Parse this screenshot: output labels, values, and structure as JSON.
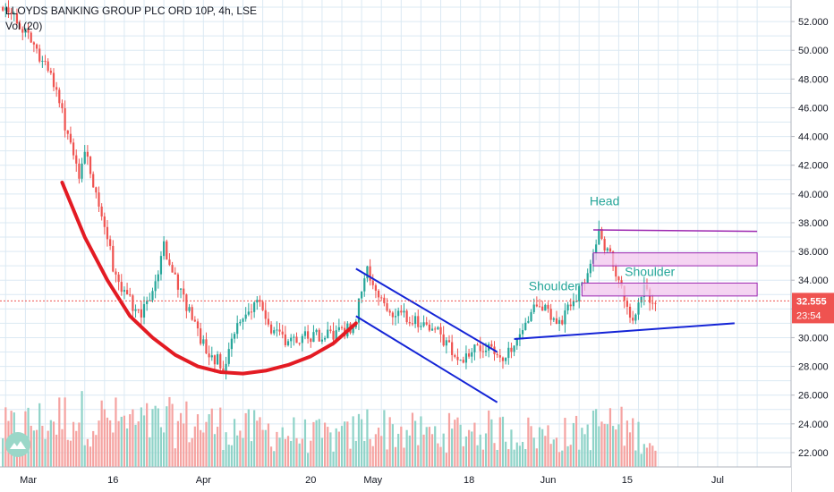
{
  "legend": {
    "symbol_line": "LLOYDS BANKING GROUP PLC ORD 10P, 4h, LSE",
    "volume_line": "Vol (20)"
  },
  "colors": {
    "up": "#26a69a",
    "down": "#ef5350",
    "up_volume": "#8fd3c8",
    "down_volume": "#f5a3a1",
    "grid": "#dbe9f3",
    "price_badge": "#ef5350",
    "cup_curve": "#e31b23",
    "channel": "#1424d6",
    "zone_fill": "#f1c6ee",
    "zone_border": "#9c27b0",
    "annotation_text": "#26a69a",
    "axis_text": "#131722"
  },
  "icons": {
    "logo": "tradingview-logo-icon"
  },
  "chart_data": {
    "type": "candlestick",
    "title": "LLOYDS BANKING GROUP PLC ORD 10P, 4h, LSE",
    "indicator": "Vol (20)",
    "ylim": [
      21.0,
      53.5
    ],
    "yticks": [
      "52.000",
      "50.000",
      "48.000",
      "46.000",
      "44.000",
      "42.000",
      "40.000",
      "38.000",
      "36.000",
      "34.000",
      "32.000",
      "30.000",
      "28.000",
      "26.000",
      "24.000",
      "22.000"
    ],
    "xticks": [
      "Mar",
      "16",
      "Apr",
      "20",
      "May",
      "18",
      "Jun",
      "15",
      "Jul"
    ],
    "xtick_days": [
      0,
      15,
      31,
      50,
      61,
      78,
      92,
      106,
      122
    ],
    "x_unit": "days from 1 March 2020",
    "xlim": [
      -5,
      135
    ],
    "last_price": "32.555",
    "countdown": "23:54",
    "grid": true,
    "price_path": [
      [
        -4.5,
        53.0
      ],
      [
        0,
        51.0
      ],
      [
        2,
        49.5
      ],
      [
        4,
        48.5
      ],
      [
        6,
        45.5
      ],
      [
        8,
        43.0
      ],
      [
        9,
        41.5
      ],
      [
        10,
        43.0
      ],
      [
        12,
        40.0
      ],
      [
        14,
        37.0
      ],
      [
        15,
        35.0
      ],
      [
        16,
        34.0
      ],
      [
        18,
        32.5
      ],
      [
        20,
        31.5
      ],
      [
        22,
        33.0
      ],
      [
        24,
        36.5
      ],
      [
        25,
        35.0
      ],
      [
        27,
        33.0
      ],
      [
        29,
        31.5
      ],
      [
        31,
        29.5
      ],
      [
        33,
        28.5
      ],
      [
        35,
        28.0
      ],
      [
        36,
        30.0
      ],
      [
        38,
        31.5
      ],
      [
        40,
        32.5
      ],
      [
        41,
        32.0
      ],
      [
        43,
        30.8
      ],
      [
        45,
        30.0
      ],
      [
        47,
        29.8
      ],
      [
        49,
        30.3
      ],
      [
        51,
        30.1
      ],
      [
        53,
        30.2
      ],
      [
        55,
        30.5
      ],
      [
        57,
        30.6
      ],
      [
        58,
        31.5
      ],
      [
        59,
        33.5
      ],
      [
        60,
        34.5
      ],
      [
        62,
        33.0
      ],
      [
        64,
        32.0
      ],
      [
        66,
        31.5
      ],
      [
        68,
        31.3
      ],
      [
        70,
        31.0
      ],
      [
        72,
        30.5
      ],
      [
        74,
        29.5
      ],
      [
        76,
        28.5
      ],
      [
        78,
        29.0
      ],
      [
        80,
        29.5
      ],
      [
        82,
        29.0
      ],
      [
        84,
        28.6
      ],
      [
        86,
        29.5
      ],
      [
        88,
        31.5
      ],
      [
        90,
        32.0
      ],
      [
        92,
        31.8
      ],
      [
        94,
        31.0
      ],
      [
        95,
        31.5
      ],
      [
        96,
        32.5
      ],
      [
        98,
        33.5
      ],
      [
        99,
        34.5
      ],
      [
        100,
        36.0
      ],
      [
        101,
        37.2
      ],
      [
        102,
        36.5
      ],
      [
        103,
        35.5
      ],
      [
        104,
        34.5
      ],
      [
        105,
        33.5
      ],
      [
        106,
        32.0
      ],
      [
        107,
        31.0
      ],
      [
        108,
        32.0
      ],
      [
        109,
        33.5
      ],
      [
        110,
        32.8
      ],
      [
        111,
        32.6
      ]
    ],
    "volume_range": [
      0,
      100
    ],
    "volume_levels": [
      [
        -4.5,
        40
      ],
      [
        8,
        55
      ],
      [
        14,
        50
      ],
      [
        20,
        45
      ],
      [
        26,
        48
      ],
      [
        32,
        46
      ],
      [
        38,
        40
      ],
      [
        44,
        38
      ],
      [
        50,
        33
      ],
      [
        56,
        32
      ],
      [
        60,
        45
      ],
      [
        66,
        38
      ],
      [
        72,
        35
      ],
      [
        78,
        40
      ],
      [
        84,
        38
      ],
      [
        88,
        36
      ],
      [
        92,
        34
      ],
      [
        98,
        36
      ],
      [
        102,
        48
      ],
      [
        106,
        40
      ],
      [
        110,
        30
      ],
      [
        111,
        20
      ]
    ],
    "annotations": {
      "head": {
        "text": "Head",
        "x": 102,
        "y": 39.2
      },
      "shoulder_left": {
        "text": "Shoulder",
        "x": 93,
        "y": 33.3
      },
      "shoulder_right": {
        "text": "Shoulder",
        "x": 110,
        "y": 34.3
      },
      "cup_curve": [
        [
          6,
          40.8
        ],
        [
          10,
          37.0
        ],
        [
          14,
          34.0
        ],
        [
          18,
          31.5
        ],
        [
          22,
          30.0
        ],
        [
          26,
          28.8
        ],
        [
          30,
          28.0
        ],
        [
          34,
          27.6
        ],
        [
          38,
          27.5
        ],
        [
          42,
          27.7
        ],
        [
          46,
          28.1
        ],
        [
          50,
          28.7
        ],
        [
          54,
          29.6
        ],
        [
          58,
          31.0
        ]
      ],
      "channel_upper": [
        [
          58,
          34.8
        ],
        [
          83,
          29.0
        ]
      ],
      "channel_lower": [
        [
          58,
          31.5
        ],
        [
          83,
          25.5
        ]
      ],
      "neckline": [
        [
          86,
          29.9
        ],
        [
          125,
          31.0
        ]
      ],
      "resistance_line": [
        [
          100,
          37.5
        ],
        [
          129,
          37.4
        ]
      ],
      "zone_top": [
        100,
        129,
        35.0,
        35.9
      ],
      "zone_mid": [
        98,
        129,
        32.9,
        33.8
      ]
    }
  }
}
